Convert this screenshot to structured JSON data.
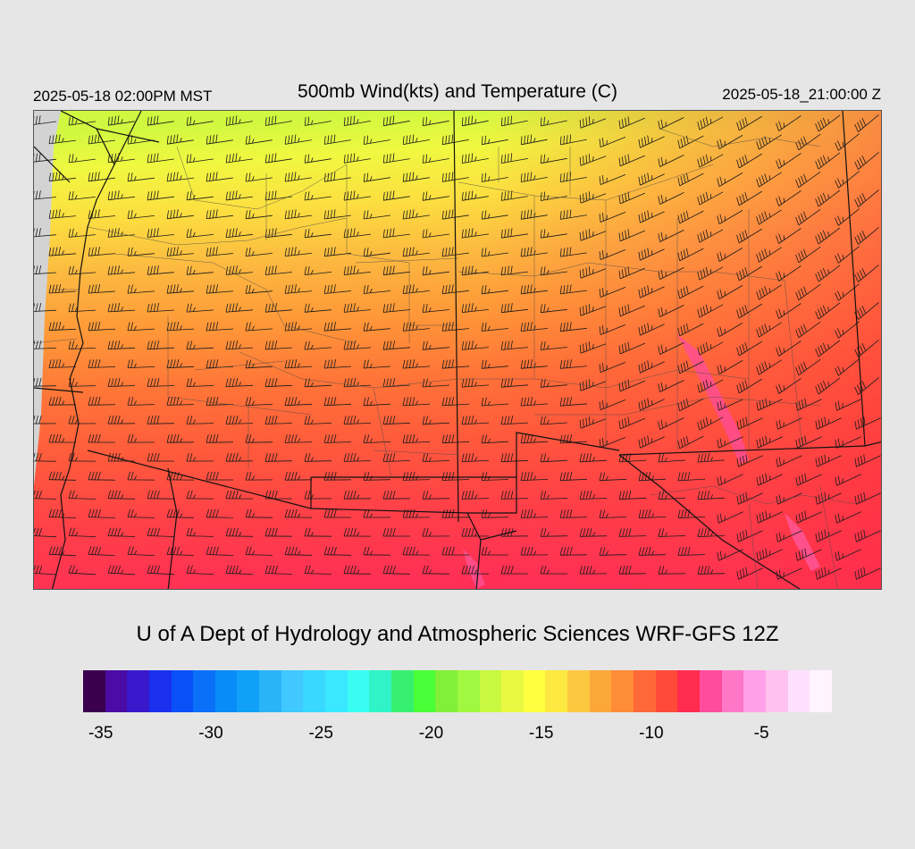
{
  "header": {
    "valid_local": "2025-05-18 02:00PM MST",
    "title": "500mb Wind(kts) and Temperature (C)",
    "valid_utc": "2025-05-18_21:00:00 Z"
  },
  "credit": "U of A Dept of Hydrology and Atmospheric Sciences WRF-GFS 12Z",
  "colorbar": {
    "colors": [
      "#3a004e",
      "#4a0ca4",
      "#3a18cc",
      "#1a30ee",
      "#0a50f8",
      "#0a70f8",
      "#0a8cf8",
      "#10a0f8",
      "#2ab4f8",
      "#40c8ff",
      "#38d8ff",
      "#3ae8ff",
      "#3afcf2",
      "#30f4c8",
      "#38f070",
      "#48ff38",
      "#80f038",
      "#a0f840",
      "#c8f840",
      "#e8f840",
      "#ffff40",
      "#fce840",
      "#fcc840",
      "#fca838",
      "#ff8c38",
      "#ff6838",
      "#ff4a3a",
      "#ff2c50",
      "#ff4c9c",
      "#ff78c8",
      "#ffa0e8",
      "#ffc2f0",
      "#ffe0fc",
      "#fff4ff"
    ],
    "ticks": [
      {
        "label": "-35",
        "index": 0.8
      },
      {
        "label": "-30",
        "index": 5.8
      },
      {
        "label": "-25",
        "index": 10.8
      },
      {
        "label": "-20",
        "index": 15.8
      },
      {
        "label": "-15",
        "index": 20.8
      },
      {
        "label": "-10",
        "index": 25.8
      },
      {
        "label": "-5",
        "index": 30.8
      }
    ]
  },
  "temperature_field": {
    "levels_c": [
      -17,
      -16,
      -15,
      -14,
      -13,
      -12,
      -11,
      -10,
      -9,
      -8,
      -7,
      -6
    ],
    "colors": [
      "#c8f840",
      "#d8f840",
      "#f0f840",
      "#fff040",
      "#fcd040",
      "#fcb040",
      "#ff9038",
      "#ff7038",
      "#ff5438",
      "#ff3848",
      "#ff2c5a",
      "#ff4c9c"
    ]
  }
}
